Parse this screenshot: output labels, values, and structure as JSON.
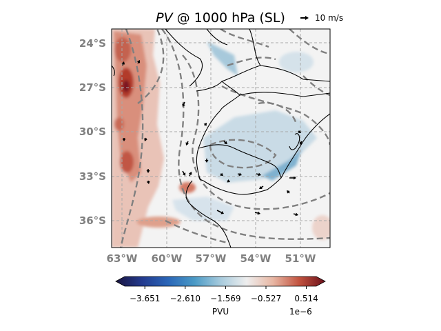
{
  "chart_data": {
    "type": "heatmap",
    "title_var": "PV",
    "title_rest": " @ 1000 hPa (SL)",
    "quiver_key_label": "10 m/s",
    "lon_ticks": [
      {
        "lon": -63,
        "label": "63°W"
      },
      {
        "lon": -60,
        "label": "60°W"
      },
      {
        "lon": -57,
        "label": "57°W"
      },
      {
        "lon": -54,
        "label": "54°W"
      },
      {
        "lon": -51,
        "label": "51°W"
      }
    ],
    "lat_ticks": [
      {
        "lat": -24,
        "label": "24°S"
      },
      {
        "lat": -27,
        "label": "27°S"
      },
      {
        "lat": -30,
        "label": "30°S"
      },
      {
        "lat": -33,
        "label": "33°S"
      },
      {
        "lat": -36,
        "label": "36°S"
      }
    ],
    "lon_range": [
      -63.8,
      -49.0
    ],
    "lat_range": [
      -38.0,
      -23.3
    ],
    "grid": true,
    "colorbar": {
      "label": "PVU",
      "scale_label": "1e−6",
      "ticks": [
        {
          "value": -3.651,
          "label": "−3.651"
        },
        {
          "value": -2.61,
          "label": "−2.610"
        },
        {
          "value": -1.569,
          "label": "−1.569"
        },
        {
          "value": -0.527,
          "label": "−0.527"
        },
        {
          "value": 0.514,
          "label": "0.514"
        }
      ],
      "range": [
        -4.17,
        0.77
      ],
      "colormap": [
        "#1a1540",
        "#233a8e",
        "#2a66b8",
        "#4a9ac6",
        "#a7cbdd",
        "#eeeeee",
        "#e8b7a4",
        "#c2533f",
        "#6b0f1a"
      ]
    },
    "colors": {
      "contour_line": "#808080",
      "coastline": "#000000",
      "wind_arrow": "#000000"
    }
  }
}
